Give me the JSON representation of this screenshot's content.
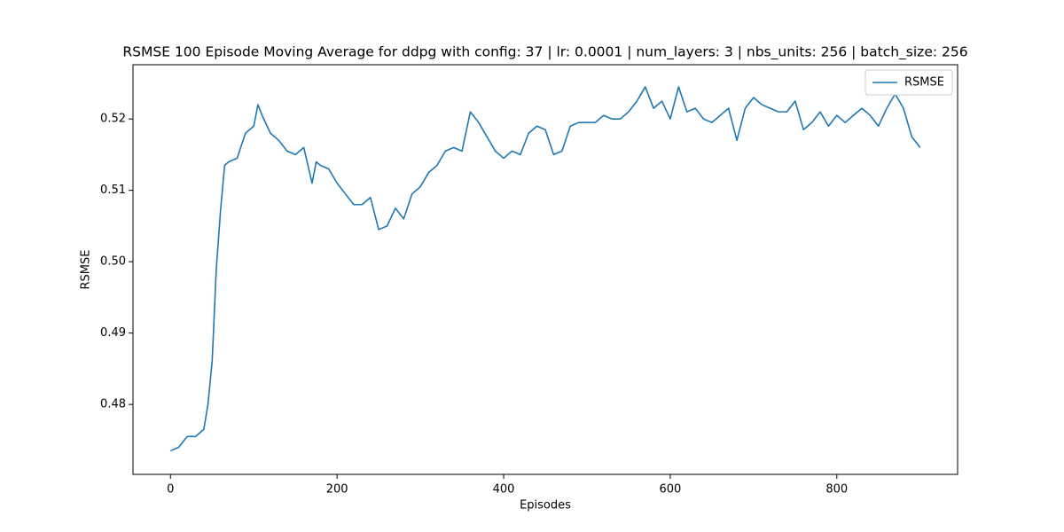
{
  "chart_data": {
    "type": "line",
    "title": "RSMSE 100 Episode Moving Average for ddpg with config: 37 | lr: 0.0001 | num_layers: 3 | nbs_units: 256 | batch_size: 256",
    "x_label": "Episodes",
    "y_label": "RSMSE",
    "x": [
      0,
      10,
      20,
      30,
      40,
      45,
      50,
      55,
      60,
      65,
      70,
      80,
      90,
      100,
      105,
      110,
      120,
      130,
      140,
      150,
      160,
      170,
      175,
      180,
      190,
      200,
      210,
      220,
      230,
      240,
      250,
      260,
      270,
      280,
      290,
      300,
      310,
      320,
      330,
      340,
      350,
      360,
      370,
      380,
      390,
      400,
      410,
      420,
      430,
      440,
      450,
      460,
      470,
      480,
      490,
      500,
      510,
      520,
      530,
      540,
      550,
      560,
      570,
      580,
      590,
      600,
      610,
      620,
      630,
      640,
      650,
      660,
      670,
      680,
      690,
      700,
      710,
      720,
      730,
      740,
      750,
      760,
      770,
      780,
      790,
      800,
      810,
      820,
      830,
      840,
      850,
      860,
      870,
      880,
      890,
      900
    ],
    "series": [
      {
        "name": "RSMSE",
        "color": "#1f77b4",
        "values": [
          0.4735,
          0.474,
          0.4755,
          0.4755,
          0.4765,
          0.48,
          0.486,
          0.499,
          0.507,
          0.5135,
          0.514,
          0.5145,
          0.518,
          0.519,
          0.522,
          0.5205,
          0.518,
          0.517,
          0.5155,
          0.515,
          0.516,
          0.511,
          0.514,
          0.5135,
          0.513,
          0.511,
          0.5095,
          0.508,
          0.508,
          0.509,
          0.5045,
          0.505,
          0.5075,
          0.506,
          0.5095,
          0.5105,
          0.5125,
          0.5135,
          0.5155,
          0.516,
          0.5155,
          0.521,
          0.5195,
          0.5175,
          0.5155,
          0.5145,
          0.5155,
          0.515,
          0.518,
          0.519,
          0.5185,
          0.515,
          0.5155,
          0.519,
          0.5195,
          0.5195,
          0.5195,
          0.5205,
          0.52,
          0.52,
          0.521,
          0.5225,
          0.5245,
          0.5215,
          0.5225,
          0.52,
          0.5245,
          0.521,
          0.5215,
          0.52,
          0.5195,
          0.5205,
          0.5215,
          0.517,
          0.5215,
          0.523,
          0.522,
          0.5215,
          0.521,
          0.521,
          0.5225,
          0.5185,
          0.5195,
          0.521,
          0.519,
          0.5205,
          0.5195,
          0.5205,
          0.5215,
          0.5205,
          0.519,
          0.5215,
          0.5235,
          0.5215,
          0.5175,
          0.516
        ]
      }
    ],
    "xlim": [
      -45,
      945
    ],
    "xticks": [
      0,
      200,
      400,
      600,
      800
    ],
    "ylim": [
      0.4702,
      0.5276
    ],
    "yticks": [
      0.48,
      0.49,
      {
        "value": 0.5,
        "label": "0.50"
      },
      0.51,
      0.52
    ],
    "grid": false,
    "legend": "upper right"
  }
}
